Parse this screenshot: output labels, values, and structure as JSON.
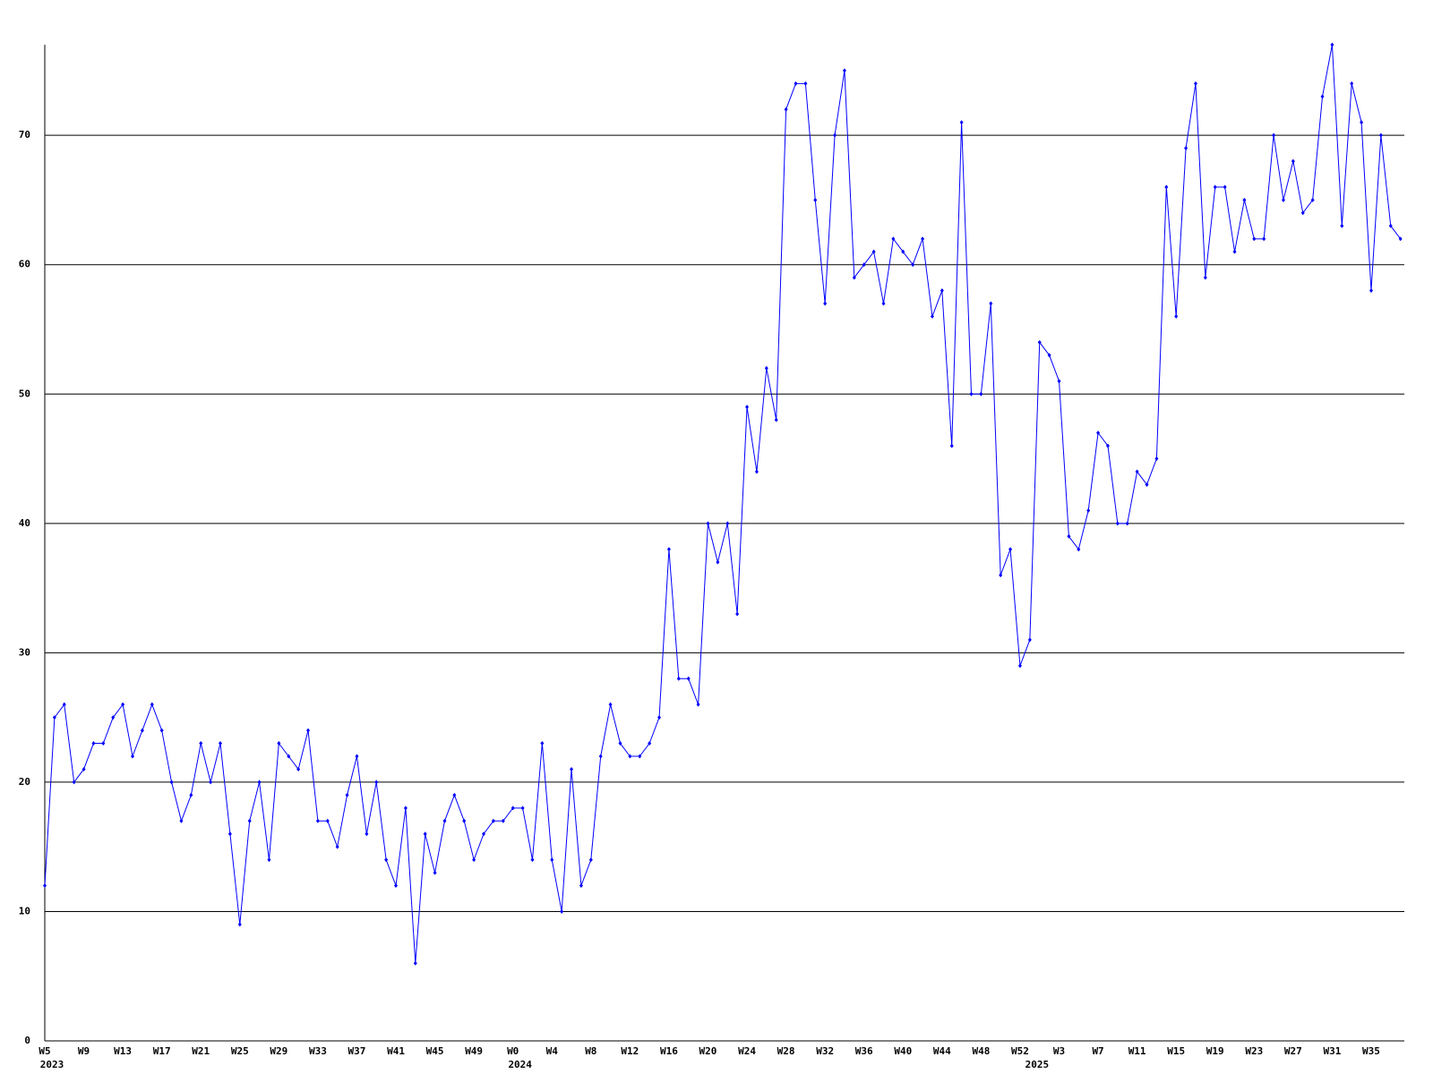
{
  "chart_data": {
    "type": "line",
    "categories": [
      "W5",
      null,
      null,
      null,
      "W9",
      null,
      null,
      null,
      "W13",
      null,
      null,
      null,
      "W17",
      null,
      null,
      null,
      "W21",
      null,
      null,
      null,
      "W25",
      null,
      null,
      null,
      "W29",
      null,
      null,
      null,
      "W33",
      null,
      null,
      null,
      "W37",
      null,
      null,
      null,
      "W41",
      null,
      null,
      null,
      "W45",
      null,
      null,
      null,
      "W49",
      null,
      null,
      null,
      "W0",
      null,
      null,
      null,
      "W4",
      null,
      null,
      null,
      "W8",
      null,
      null,
      null,
      "W12",
      null,
      null,
      null,
      "W16",
      null,
      null,
      null,
      "W20",
      null,
      null,
      null,
      "W24",
      null,
      null,
      null,
      "W28",
      null,
      null,
      null,
      "W32",
      null,
      null,
      null,
      "W36",
      null,
      null,
      null,
      "W40",
      null,
      null,
      null,
      "W44",
      null,
      null,
      null,
      "W48",
      null,
      null,
      null,
      "W52",
      null,
      null,
      null,
      "W3",
      null,
      null,
      null,
      "W7",
      null,
      null,
      null,
      "W11",
      null,
      null,
      null,
      "W15",
      null,
      null,
      null,
      "W19",
      null,
      null,
      null,
      "W23",
      null,
      null,
      null,
      "W27",
      null,
      null,
      null,
      "W31",
      null,
      null,
      null,
      "W35",
      null,
      null,
      null
    ],
    "x_year_labels": [
      "2023",
      null,
      null,
      null,
      null,
      null,
      null,
      null,
      null,
      null,
      null,
      null,
      null,
      null,
      null,
      null,
      null,
      null,
      null,
      null,
      null,
      null,
      null,
      null,
      null,
      null,
      null,
      null,
      null,
      null,
      null,
      null,
      null,
      null,
      null,
      null,
      null,
      null,
      null,
      null,
      null,
      null,
      null,
      null,
      null,
      null,
      null,
      null,
      "2024",
      null,
      null,
      null,
      null,
      null,
      null,
      null,
      null,
      null,
      null,
      null,
      null,
      null,
      null,
      null,
      null,
      null,
      null,
      null,
      null,
      null,
      null,
      null,
      null,
      null,
      null,
      null,
      null,
      null,
      null,
      null,
      null,
      null,
      null,
      null,
      null,
      null,
      null,
      null,
      null,
      null,
      null,
      null,
      null,
      null,
      null,
      null,
      null,
      null,
      null,
      null,
      null,
      "2025",
      null,
      null,
      null,
      null,
      null,
      null,
      null,
      null,
      null,
      null,
      null,
      null,
      null,
      null,
      null,
      null,
      null,
      null,
      null,
      null,
      null,
      null,
      null,
      null,
      null,
      null,
      null,
      null,
      null,
      null,
      null,
      null,
      null,
      null,
      null,
      null,
      null
    ],
    "series": [
      {
        "color": "#0000ff",
        "values": [
          12,
          25,
          26,
          20,
          21,
          23,
          23,
          25,
          26,
          22,
          24,
          26,
          24,
          20,
          17,
          19,
          23,
          20,
          23,
          16,
          9,
          17,
          20,
          14,
          23,
          22,
          21,
          24,
          17,
          17,
          15,
          19,
          22,
          16,
          20,
          14,
          12,
          18,
          6,
          16,
          13,
          17,
          19,
          17,
          14,
          16,
          17,
          17,
          18,
          18,
          14,
          23,
          14,
          10,
          21,
          12,
          14,
          22,
          26,
          23,
          22,
          22,
          23,
          25,
          38,
          28,
          28,
          26,
          40,
          37,
          40,
          33,
          49,
          44,
          52,
          48,
          72,
          74,
          74,
          65,
          57,
          70,
          75,
          59,
          60,
          61,
          57,
          62,
          61,
          60,
          62,
          56,
          58,
          46,
          71,
          50,
          50,
          57,
          36,
          38,
          29,
          31,
          54,
          53,
          51,
          39,
          38,
          41,
          47,
          46,
          40,
          40,
          44,
          43,
          45,
          66,
          56,
          69,
          74,
          59,
          66,
          66,
          61,
          65,
          62,
          62,
          70,
          65,
          68,
          64,
          65,
          73,
          77,
          63,
          74,
          71,
          58,
          70,
          63,
          62
        ]
      }
    ],
    "ylim": [
      0,
      77
    ],
    "yticks": [
      0,
      10,
      20,
      30,
      40,
      50,
      60,
      70
    ],
    "grid": true
  }
}
